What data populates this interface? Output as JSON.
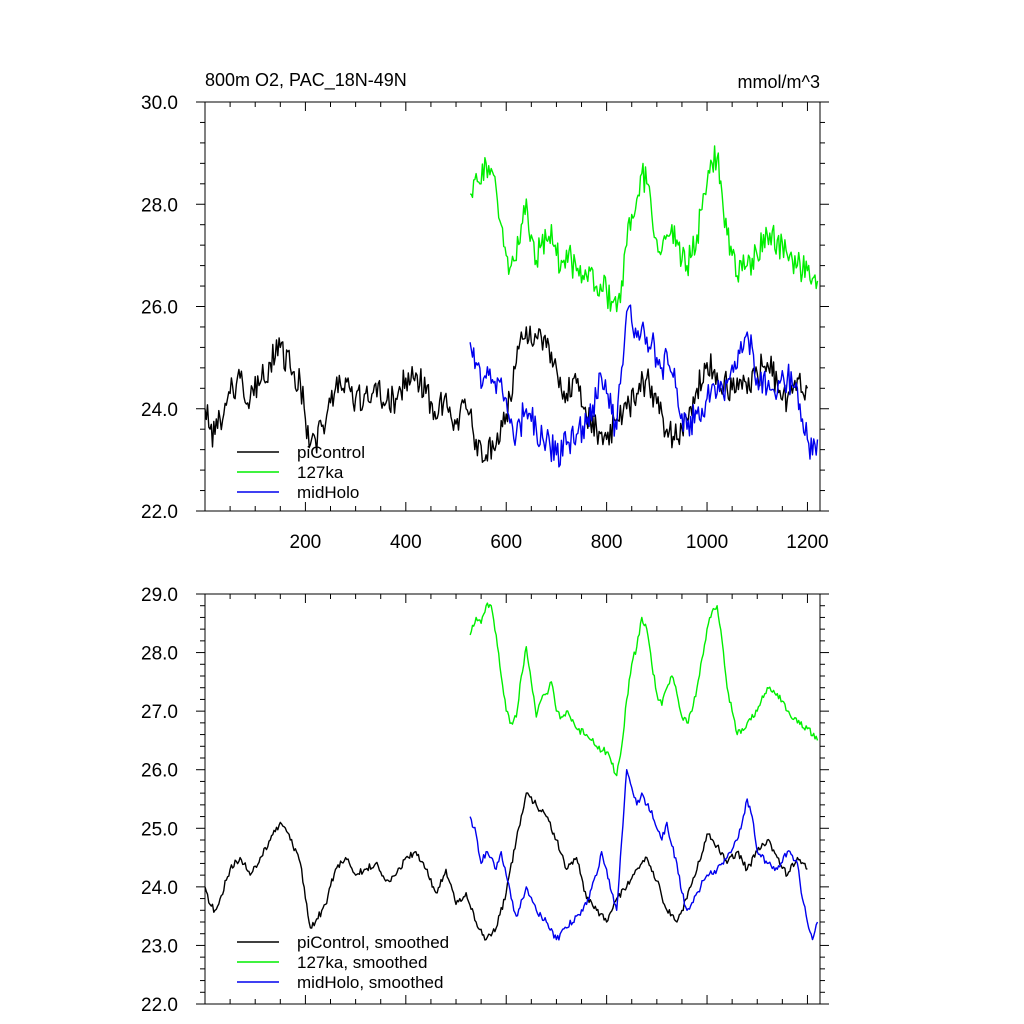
{
  "chart_data": [
    {
      "type": "line",
      "title": "800m O2, PAC_18N-49N",
      "units": "mmol/m^3",
      "xlabel": "",
      "ylabel": "",
      "xlim": [
        0,
        1225
      ],
      "ylim": [
        22.0,
        30.0
      ],
      "x_ticks": [
        200,
        400,
        600,
        800,
        1000,
        1200
      ],
      "x_tick_labels": [
        "200",
        "400",
        "600",
        "800",
        "1000",
        "1200"
      ],
      "y_ticks": [
        22.0,
        24.0,
        26.0,
        28.0,
        30.0
      ],
      "y_tick_labels": [
        "22.0",
        "24.0",
        "26.0",
        "28.0",
        "30.0"
      ],
      "legend_position": "bottom-left",
      "noise": 0.3,
      "series": [
        {
          "name": "piControl",
          "color": "#000000",
          "x": [
            0,
            10,
            20,
            30,
            50,
            70,
            90,
            110,
            130,
            150,
            170,
            190,
            200,
            210,
            220,
            240,
            260,
            280,
            300,
            320,
            340,
            360,
            380,
            400,
            420,
            440,
            460,
            480,
            500,
            520,
            540,
            560,
            580,
            600,
            620,
            640,
            660,
            680,
            700,
            720,
            740,
            760,
            780,
            800,
            820,
            840,
            860,
            880,
            900,
            920,
            940,
            960,
            980,
            1000,
            1020,
            1040,
            1060,
            1080,
            1100,
            1120,
            1140,
            1160,
            1180,
            1200
          ],
          "values": [
            24.0,
            23.6,
            23.5,
            23.8,
            24.3,
            24.6,
            24.2,
            24.5,
            24.9,
            25.2,
            24.8,
            24.5,
            23.8,
            23.3,
            23.4,
            23.7,
            24.4,
            24.6,
            24.2,
            24.3,
            24.5,
            24.1,
            24.2,
            24.6,
            24.7,
            24.3,
            23.8,
            24.3,
            23.7,
            24.0,
            23.4,
            23.1,
            23.3,
            23.9,
            24.9,
            25.6,
            25.4,
            25.2,
            24.8,
            24.3,
            24.5,
            23.8,
            23.6,
            23.4,
            23.8,
            24.0,
            24.3,
            24.6,
            24.1,
            23.6,
            23.4,
            23.8,
            24.4,
            24.9,
            24.7,
            24.4,
            24.6,
            24.3,
            24.7,
            24.9,
            24.5,
            24.2,
            24.6,
            24.4
          ]
        },
        {
          "name": "127ka",
          "color": "#00ee00",
          "x": [
            528,
            540,
            550,
            560,
            570,
            580,
            590,
            600,
            610,
            620,
            630,
            640,
            650,
            660,
            670,
            680,
            690,
            700,
            710,
            720,
            740,
            760,
            780,
            800,
            810,
            820,
            830,
            840,
            850,
            860,
            870,
            880,
            890,
            900,
            910,
            920,
            930,
            940,
            950,
            960,
            970,
            980,
            990,
            1000,
            1010,
            1020,
            1030,
            1040,
            1050,
            1060,
            1070,
            1080,
            1100,
            1120,
            1140,
            1160,
            1180,
            1200,
            1220
          ],
          "values": [
            28.2,
            28.6,
            28.4,
            28.8,
            28.7,
            28.3,
            27.6,
            27.0,
            26.8,
            26.9,
            27.6,
            28.1,
            27.4,
            26.9,
            27.2,
            27.3,
            27.6,
            27.0,
            26.9,
            27.1,
            26.7,
            26.6,
            26.4,
            26.3,
            26.1,
            25.9,
            26.5,
            27.2,
            27.8,
            28.1,
            28.6,
            28.4,
            27.8,
            27.3,
            27.1,
            27.4,
            27.6,
            27.3,
            26.9,
            26.8,
            27.0,
            27.4,
            27.9,
            28.4,
            28.8,
            28.9,
            28.2,
            27.4,
            27.0,
            26.6,
            26.7,
            26.8,
            27.0,
            27.4,
            27.3,
            27.0,
            26.8,
            26.7,
            26.5
          ]
        },
        {
          "name": "midHolo",
          "color": "#0000ee",
          "x": [
            528,
            540,
            550,
            560,
            570,
            580,
            590,
            600,
            610,
            620,
            640,
            660,
            680,
            700,
            720,
            740,
            760,
            780,
            790,
            800,
            810,
            820,
            830,
            840,
            850,
            860,
            870,
            880,
            890,
            900,
            910,
            920,
            930,
            940,
            950,
            960,
            980,
            1000,
            1020,
            1040,
            1060,
            1070,
            1080,
            1090,
            1100,
            1120,
            1140,
            1160,
            1180,
            1190,
            1200,
            1210,
            1220
          ],
          "values": [
            25.3,
            24.9,
            24.4,
            24.6,
            24.5,
            24.3,
            24.6,
            24.2,
            23.8,
            23.5,
            24.0,
            23.6,
            23.4,
            23.1,
            23.3,
            23.5,
            23.7,
            24.2,
            24.6,
            24.3,
            23.9,
            23.6,
            24.8,
            25.9,
            25.7,
            25.4,
            25.6,
            25.4,
            25.3,
            25.0,
            24.8,
            25.1,
            24.7,
            24.4,
            23.9,
            23.6,
            23.9,
            24.2,
            24.3,
            24.5,
            24.8,
            25.1,
            25.5,
            25.2,
            24.6,
            24.4,
            24.3,
            24.6,
            24.4,
            23.8,
            23.4,
            23.1,
            23.4
          ]
        }
      ]
    },
    {
      "type": "line",
      "title": "",
      "xlim": [
        0,
        1225
      ],
      "ylim": [
        22.0,
        29.0
      ],
      "x_ticks": [
        200,
        400,
        600,
        800,
        1000,
        1200
      ],
      "x_tick_labels": [],
      "y_ticks": [
        22.0,
        23.0,
        24.0,
        25.0,
        26.0,
        27.0,
        28.0,
        29.0
      ],
      "y_tick_labels": [
        "22.0",
        "23.0",
        "24.0",
        "25.0",
        "26.0",
        "27.0",
        "28.0",
        "29.0"
      ],
      "legend_position": "bottom-left",
      "noise": 0.06,
      "series": [
        {
          "name": "piControl, smoothed",
          "color": "#000000",
          "x": [
            0,
            10,
            20,
            30,
            50,
            70,
            90,
            110,
            130,
            150,
            170,
            190,
            200,
            210,
            220,
            240,
            260,
            280,
            300,
            320,
            340,
            360,
            380,
            400,
            420,
            440,
            460,
            480,
            500,
            520,
            540,
            560,
            580,
            600,
            620,
            640,
            660,
            680,
            700,
            720,
            740,
            760,
            780,
            800,
            820,
            840,
            860,
            880,
            900,
            920,
            940,
            960,
            980,
            1000,
            1020,
            1040,
            1060,
            1080,
            1100,
            1120,
            1140,
            1160,
            1180,
            1200
          ],
          "values": [
            24.0,
            23.7,
            23.6,
            23.8,
            24.3,
            24.5,
            24.2,
            24.5,
            24.8,
            25.1,
            24.8,
            24.4,
            23.8,
            23.3,
            23.4,
            23.7,
            24.3,
            24.5,
            24.2,
            24.3,
            24.4,
            24.1,
            24.2,
            24.5,
            24.6,
            24.3,
            23.9,
            24.3,
            23.7,
            23.9,
            23.4,
            23.1,
            23.3,
            23.9,
            24.8,
            25.6,
            25.4,
            25.2,
            24.8,
            24.3,
            24.5,
            23.8,
            23.6,
            23.4,
            23.8,
            24.0,
            24.3,
            24.5,
            24.1,
            23.6,
            23.4,
            23.8,
            24.3,
            24.9,
            24.7,
            24.4,
            24.6,
            24.3,
            24.6,
            24.8,
            24.5,
            24.2,
            24.5,
            24.3
          ]
        },
        {
          "name": "127ka, smoothed",
          "color": "#00ee00",
          "x": [
            528,
            540,
            550,
            560,
            570,
            580,
            590,
            600,
            610,
            620,
            630,
            640,
            650,
            660,
            670,
            680,
            690,
            700,
            710,
            720,
            740,
            760,
            780,
            800,
            810,
            820,
            830,
            840,
            850,
            860,
            870,
            880,
            890,
            900,
            910,
            920,
            930,
            940,
            950,
            960,
            970,
            980,
            990,
            1000,
            1010,
            1020,
            1030,
            1040,
            1050,
            1060,
            1070,
            1080,
            1100,
            1120,
            1140,
            1160,
            1180,
            1200,
            1220
          ],
          "values": [
            28.3,
            28.6,
            28.5,
            28.8,
            28.8,
            28.3,
            27.6,
            27.0,
            26.8,
            26.9,
            27.6,
            28.1,
            27.5,
            26.9,
            27.2,
            27.3,
            27.5,
            27.0,
            26.9,
            27.0,
            26.7,
            26.6,
            26.4,
            26.3,
            26.1,
            25.9,
            26.4,
            27.2,
            27.8,
            28.1,
            28.6,
            28.4,
            27.8,
            27.3,
            27.1,
            27.4,
            27.6,
            27.3,
            26.9,
            26.8,
            27.0,
            27.4,
            27.9,
            28.4,
            28.7,
            28.8,
            28.2,
            27.4,
            27.0,
            26.6,
            26.7,
            26.8,
            27.0,
            27.4,
            27.3,
            27.0,
            26.8,
            26.7,
            26.5
          ]
        },
        {
          "name": "midHolo, smoothed",
          "color": "#0000ee",
          "x": [
            528,
            540,
            550,
            560,
            570,
            580,
            590,
            600,
            610,
            620,
            640,
            660,
            680,
            700,
            720,
            740,
            760,
            780,
            790,
            800,
            810,
            820,
            830,
            840,
            850,
            860,
            870,
            880,
            890,
            900,
            910,
            920,
            930,
            940,
            950,
            960,
            980,
            1000,
            1020,
            1040,
            1060,
            1070,
            1080,
            1090,
            1100,
            1120,
            1140,
            1160,
            1180,
            1190,
            1200,
            1210,
            1220
          ],
          "values": [
            25.2,
            24.9,
            24.4,
            24.6,
            24.5,
            24.3,
            24.6,
            24.2,
            23.8,
            23.5,
            24.0,
            23.6,
            23.4,
            23.1,
            23.3,
            23.5,
            23.7,
            24.2,
            24.6,
            24.3,
            23.9,
            23.6,
            24.8,
            26.0,
            25.7,
            25.4,
            25.6,
            25.4,
            25.3,
            25.0,
            24.8,
            25.1,
            24.7,
            24.4,
            23.9,
            23.6,
            23.9,
            24.2,
            24.3,
            24.5,
            24.8,
            25.1,
            25.5,
            25.2,
            24.6,
            24.4,
            24.3,
            24.6,
            24.4,
            23.8,
            23.4,
            23.1,
            23.4
          ]
        }
      ]
    }
  ]
}
